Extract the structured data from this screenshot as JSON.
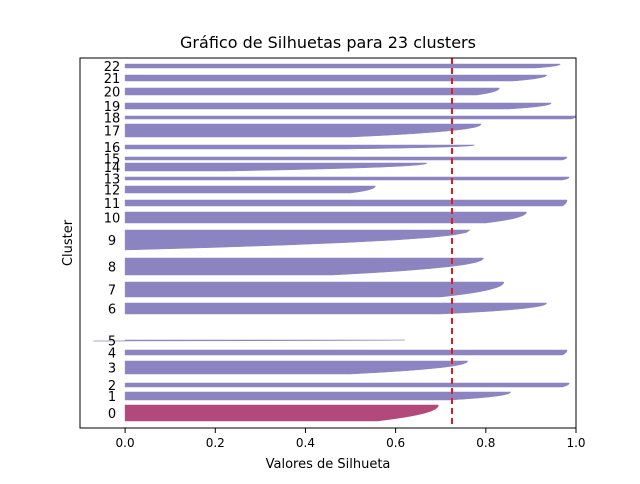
{
  "chart_data": {
    "type": "silhouette",
    "title": "Gráfico de Silhuetas para 23 clusters",
    "xlabel": "Valores de Silhueta",
    "ylabel": "Cluster",
    "xlim": [
      -0.1,
      1.0
    ],
    "xticks": [
      "0.0",
      "0.2",
      "0.4",
      "0.6",
      "0.8",
      "1.0"
    ],
    "xtick_values": [
      0.0,
      0.2,
      0.4,
      0.6,
      0.8,
      1.0
    ],
    "average_silhouette": 0.725,
    "average_line_color": "#e41a1c",
    "highlight_color": "#b2497a",
    "cluster_color": "#8c84c0",
    "clusters": [
      {
        "label": "0",
        "min": 0.56,
        "max": 0.695,
        "highlight": true
      },
      {
        "label": "1",
        "min": 0.72,
        "max": 0.855
      },
      {
        "label": "2",
        "min": 0.97,
        "max": 0.985
      },
      {
        "label": "3",
        "min": 0.5,
        "max": 0.76
      },
      {
        "label": "4",
        "min": 0.97,
        "max": 0.98
      },
      {
        "label": "5",
        "min": -0.07,
        "max": 0.62
      },
      {
        "label": "6",
        "min": 0.7,
        "max": 0.935
      },
      {
        "label": "7",
        "min": 0.7,
        "max": 0.84
      },
      {
        "label": "8",
        "min": 0.46,
        "max": 0.795
      },
      {
        "label": "9",
        "min": 0.0,
        "max": 0.765
      },
      {
        "label": "10",
        "min": 0.8,
        "max": 0.89
      },
      {
        "label": "11",
        "min": 0.97,
        "max": 0.98
      },
      {
        "label": "12",
        "min": 0.5,
        "max": 0.555
      },
      {
        "label": "13",
        "min": 0.97,
        "max": 0.985
      },
      {
        "label": "14",
        "min": 0.23,
        "max": 0.67
      },
      {
        "label": "15",
        "min": 0.97,
        "max": 0.98
      },
      {
        "label": "16",
        "min": 0.49,
        "max": 0.775
      },
      {
        "label": "17",
        "min": 0.5,
        "max": 0.79
      },
      {
        "label": "18",
        "min": 0.99,
        "max": 1.0
      },
      {
        "label": "19",
        "min": 0.85,
        "max": 0.945
      },
      {
        "label": "20",
        "min": 0.78,
        "max": 0.83
      },
      {
        "label": "21",
        "min": 0.86,
        "max": 0.935
      },
      {
        "label": "22",
        "min": 0.91,
        "max": 0.965
      }
    ]
  }
}
